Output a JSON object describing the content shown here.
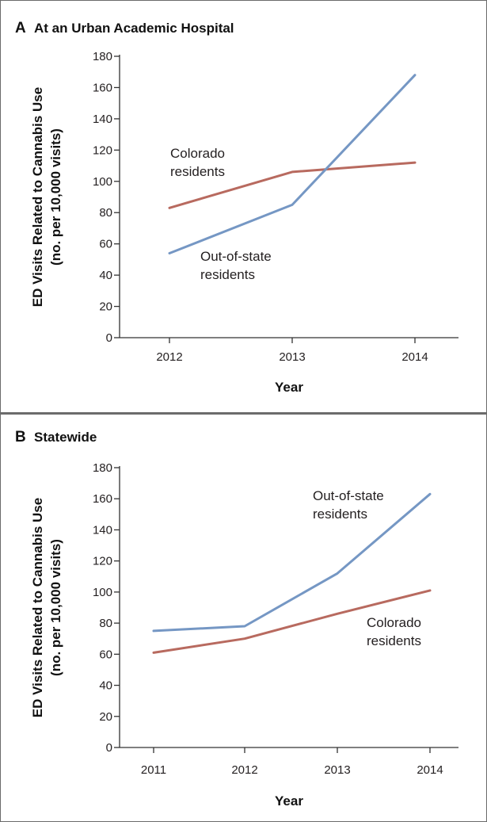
{
  "colors": {
    "colorado": "#b86a5f",
    "out_of_state": "#7597c4",
    "axis": "#333333"
  },
  "chart_data": [
    {
      "panel": "A",
      "type": "line",
      "title": "At an Urban Academic Hospital",
      "xlabel": "Year",
      "ylabel": [
        "ED Visits Related to Cannabis Use",
        "(no. per 10,000 visits)"
      ],
      "x": [
        "2012",
        "2013",
        "2014"
      ],
      "ylim": [
        0,
        180
      ],
      "yticks": [
        0,
        20,
        40,
        60,
        80,
        100,
        120,
        140,
        160,
        180
      ],
      "series": [
        {
          "name": "Colorado residents",
          "label_lines": [
            "Colorado",
            "residents"
          ],
          "color": "#b86a5f",
          "values": [
            83,
            106,
            112
          ]
        },
        {
          "name": "Out-of-state residents",
          "label_lines": [
            "Out-of-state",
            "residents"
          ],
          "color": "#7597c4",
          "values": [
            54,
            85,
            168
          ]
        }
      ]
    },
    {
      "panel": "B",
      "type": "line",
      "title": "Statewide",
      "xlabel": "Year",
      "ylabel": [
        "ED Visits Related to Cannabis Use",
        "(no. per 10,000 visits)"
      ],
      "x": [
        "2011",
        "2012",
        "2013",
        "2014"
      ],
      "ylim": [
        0,
        180
      ],
      "yticks": [
        0,
        20,
        40,
        60,
        80,
        100,
        120,
        140,
        160,
        180
      ],
      "series": [
        {
          "name": "Out-of-state residents",
          "label_lines": [
            "Out-of-state",
            "residents"
          ],
          "color": "#7597c4",
          "values": [
            75,
            78,
            112,
            163
          ]
        },
        {
          "name": "Colorado residents",
          "label_lines": [
            "Colorado",
            "residents"
          ],
          "color": "#b86a5f",
          "values": [
            61,
            70,
            86,
            101
          ]
        }
      ]
    }
  ]
}
